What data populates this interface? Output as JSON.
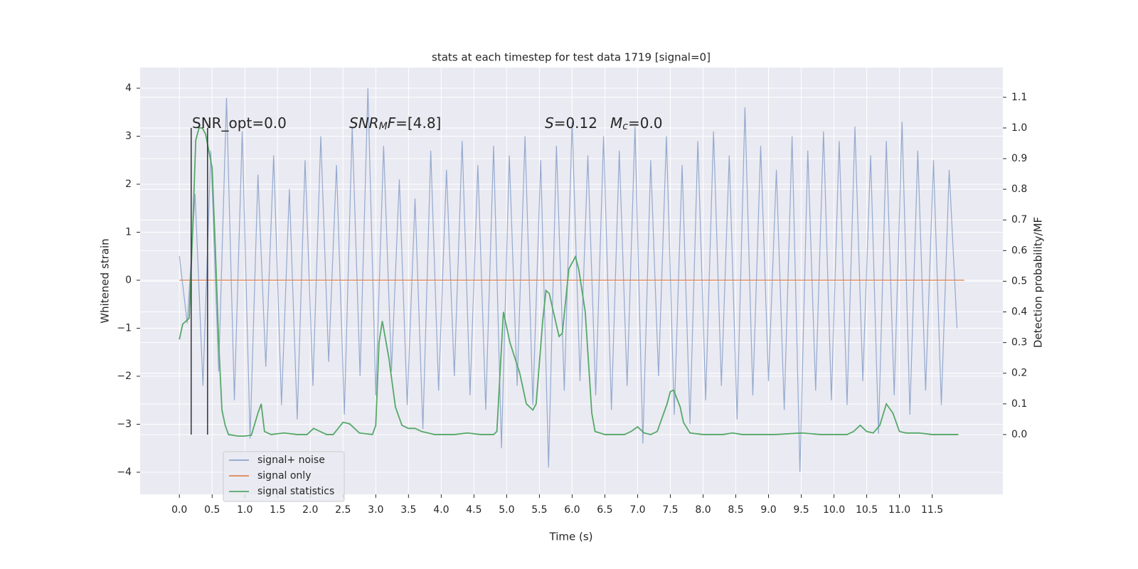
{
  "chart_data": {
    "type": "line",
    "title": "stats at each timestep for test data 1719 [signal=0]",
    "xlabel": "Time (s)",
    "ylabel": "Whitened strain",
    "y2label": "Detection probability/MF",
    "xlim": [
      -0.6,
      12.58
    ],
    "ylim": [
      -4.46,
      4.43
    ],
    "y2lim": [
      -0.195,
      1.197
    ],
    "xticks": [
      {
        "value": 0,
        "label": "0.0"
      },
      0.5,
      {
        "value": 1,
        "label": "1.0"
      },
      1.5,
      {
        "value": 2,
        "label": "2.0"
      },
      2.5,
      {
        "value": 3,
        "label": "3.0"
      },
      3.5,
      {
        "value": 4,
        "label": "4.0"
      },
      4.5,
      {
        "value": 5,
        "label": "5.0"
      },
      5.5,
      {
        "value": 6,
        "label": "6.0"
      },
      6.5,
      {
        "value": 7,
        "label": "7.0"
      },
      7.5,
      {
        "value": 8,
        "label": "8.0"
      },
      8.5,
      {
        "value": 9,
        "label": "9.0"
      },
      9.5,
      {
        "value": 10,
        "label": "10.0"
      },
      10.5,
      {
        "value": 11,
        "label": "11.0"
      },
      11.5
    ],
    "yticks": [
      {
        "value": -4,
        "label": "−4"
      },
      {
        "value": -3,
        "label": "−3"
      },
      {
        "value": -2,
        "label": "−2"
      },
      {
        "value": -1,
        "label": "−1"
      },
      0,
      1,
      2,
      3,
      4
    ],
    "y2ticks": [
      {
        "value": 0,
        "label": "0.0"
      },
      0.1,
      0.2,
      0.3,
      0.4,
      0.5,
      0.6,
      0.7,
      0.8,
      0.9,
      {
        "value": 1,
        "label": "1.0"
      },
      1.1
    ],
    "grid": true,
    "legend": "lower left",
    "series": [
      {
        "name": "signal+ noise",
        "color": "#4c72b0",
        "x": [
          0,
          0.12,
          0.24,
          0.36,
          0.48,
          0.6,
          0.72,
          0.84,
          0.96,
          1.08,
          1.2,
          1.32,
          1.44,
          1.56,
          1.68,
          1.8,
          1.92,
          2.04,
          2.16,
          2.28,
          2.4,
          2.52,
          2.64,
          2.76,
          2.88,
          3,
          3.12,
          3.24,
          3.36,
          3.48,
          3.6,
          3.72,
          3.84,
          3.96,
          4.08,
          4.2,
          4.32,
          4.44,
          4.56,
          4.68,
          4.8,
          4.92,
          5.04,
          5.16,
          5.28,
          5.4,
          5.52,
          5.64,
          5.76,
          5.88,
          6,
          6.12,
          6.24,
          6.36,
          6.48,
          6.6,
          6.72,
          6.84,
          6.96,
          7.08,
          7.2,
          7.32,
          7.44,
          7.56,
          7.68,
          7.8,
          7.92,
          8.04,
          8.16,
          8.28,
          8.4,
          8.52,
          8.64,
          8.76,
          8.88,
          9,
          9.12,
          9.24,
          9.36,
          9.48,
          9.6,
          9.72,
          9.84,
          9.96,
          10.08,
          10.2,
          10.32,
          10.44,
          10.56,
          10.68,
          10.8,
          10.92,
          11.04,
          11.16,
          11.28,
          11.4,
          11.52,
          11.64,
          11.76,
          11.88
        ],
        "values": [
          0.5,
          -0.9,
          1.8,
          -2.2,
          2.7,
          -1.9,
          3.8,
          -2.5,
          3.1,
          -3.3,
          2.2,
          -1.8,
          2.6,
          -2.6,
          1.9,
          -2.9,
          2.5,
          -2.2,
          3.0,
          -1.7,
          2.4,
          -2.8,
          3.2,
          -2.0,
          4.0,
          -2.4,
          2.8,
          -1.9,
          2.1,
          -2.6,
          1.7,
          -3.1,
          2.7,
          -2.3,
          2.3,
          -2.0,
          2.9,
          -2.4,
          2.4,
          -2.7,
          2.8,
          -3.5,
          2.6,
          -2.2,
          3.0,
          -2.6,
          2.5,
          -3.9,
          2.8,
          -2.3,
          3.3,
          -2.1,
          2.6,
          -2.4,
          3.0,
          -2.7,
          2.7,
          -2.2,
          3.2,
          -3.4,
          2.5,
          -2.0,
          3.0,
          -2.8,
          2.4,
          -3.0,
          2.9,
          -2.5,
          3.1,
          -2.2,
          2.6,
          -2.9,
          3.6,
          -2.4,
          2.8,
          -2.1,
          2.3,
          -2.7,
          3.0,
          -4.0,
          2.7,
          -2.3,
          3.1,
          -2.5,
          2.9,
          -2.6,
          3.2,
          -2.1,
          2.6,
          -3.2,
          2.9,
          -2.4,
          3.3,
          -2.8,
          2.7,
          -2.3,
          2.5,
          -2.6,
          2.3,
          -1.0
        ]
      },
      {
        "name": "signal only",
        "color": "#dd8452",
        "x": [
          0,
          11.99
        ],
        "values": [
          0,
          0
        ]
      },
      {
        "name": "signal statistics",
        "color": "#55a868",
        "axis": "y2",
        "x": [
          0,
          0.05,
          0.15,
          0.2,
          0.25,
          0.3,
          0.35,
          0.4,
          0.5,
          0.55,
          0.6,
          0.65,
          0.7,
          0.75,
          0.9,
          1.0,
          1.1,
          1.2,
          1.25,
          1.3,
          1.4,
          1.6,
          1.8,
          1.95,
          2.05,
          2.15,
          2.25,
          2.35,
          2.5,
          2.6,
          2.75,
          2.95,
          3.0,
          3.05,
          3.1,
          3.2,
          3.3,
          3.4,
          3.5,
          3.6,
          3.7,
          3.9,
          4.2,
          4.4,
          4.6,
          4.8,
          4.85,
          4.95,
          5.05,
          5.2,
          5.3,
          5.4,
          5.45,
          5.55,
          5.6,
          5.65,
          5.8,
          5.85,
          5.95,
          6.05,
          6.1,
          6.2,
          6.3,
          6.35,
          6.5,
          6.8,
          6.9,
          7.0,
          7.1,
          7.2,
          7.3,
          7.45,
          7.5,
          7.55,
          7.65,
          7.7,
          7.8,
          8.0,
          8.3,
          8.45,
          8.6,
          9.1,
          9.5,
          9.8,
          10.2,
          10.3,
          10.4,
          10.5,
          10.6,
          10.7,
          10.8,
          10.9,
          11.0,
          11.1,
          11.3,
          11.5,
          11.9
        ],
        "values": [
          0.31,
          0.36,
          0.38,
          0.65,
          0.96,
          1.0,
          1.0,
          0.98,
          0.87,
          0.6,
          0.3,
          0.08,
          0.03,
          0.0,
          -0.005,
          -0.005,
          -0.002,
          0.07,
          0.1,
          0.01,
          0.0,
          0.005,
          0.0,
          0.0,
          0.02,
          0.01,
          0.0,
          0.0,
          0.04,
          0.035,
          0.005,
          0.0,
          0.03,
          0.3,
          0.37,
          0.25,
          0.09,
          0.03,
          0.02,
          0.02,
          0.01,
          0.0,
          0.0,
          0.005,
          0.0,
          0.0,
          0.01,
          0.4,
          0.3,
          0.2,
          0.1,
          0.08,
          0.1,
          0.37,
          0.47,
          0.46,
          0.32,
          0.33,
          0.54,
          0.58,
          0.54,
          0.4,
          0.07,
          0.01,
          0.0,
          0.0,
          0.01,
          0.025,
          0.005,
          0.0,
          0.01,
          0.1,
          0.14,
          0.145,
          0.09,
          0.04,
          0.005,
          0.0,
          0.0,
          0.005,
          0.0,
          0.0,
          0.005,
          0.0,
          0.0,
          0.01,
          0.03,
          0.01,
          0.005,
          0.03,
          0.1,
          0.07,
          0.01,
          0.005,
          0.005,
          0.0,
          0.0
        ]
      }
    ],
    "vlines": {
      "color": "#333333",
      "axis": "y2",
      "x": [
        0.18,
        0.43
      ],
      "ymin": 0,
      "ymax": 1
    },
    "annotations": [
      [
        {
          "t": "SNR_opt=0.0"
        }
      ],
      [
        {
          "t": "SNR",
          "i": true
        },
        {
          "t": "M",
          "sub": true,
          "i": true
        },
        {
          "t": "F",
          "i": true
        },
        {
          "t": "=[4.8]"
        }
      ],
      [
        {
          "t": "S",
          "i": true
        },
        {
          "t": "=0.12"
        }
      ],
      [
        {
          "t": "M",
          "i": true
        },
        {
          "t": "c",
          "sub": true,
          "i": true
        },
        {
          "t": "=0.0"
        }
      ]
    ]
  }
}
